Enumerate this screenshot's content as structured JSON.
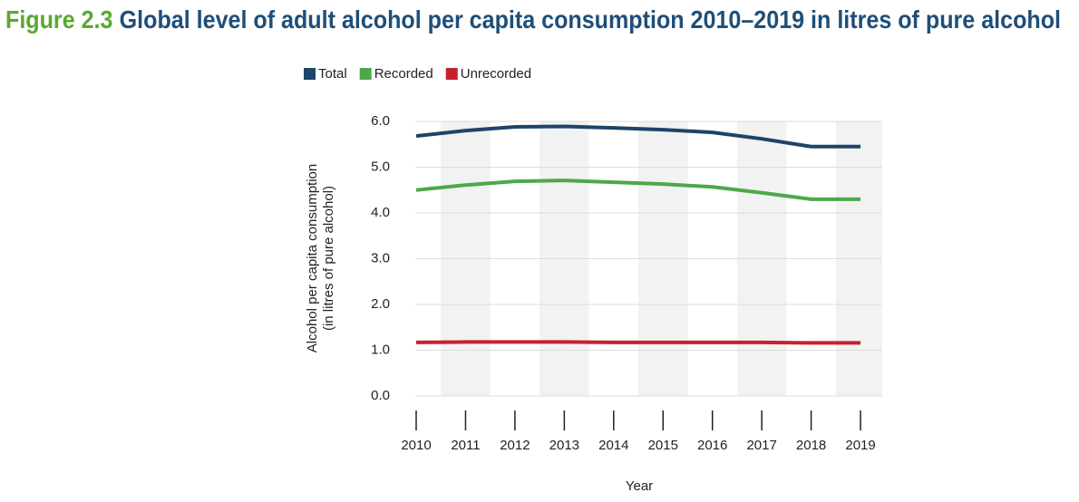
{
  "chart_data": {
    "type": "line",
    "figure_label": "Figure 2.3",
    "title": "Global level of adult alcohol per capita consumption 2010–2019 in litres of pure alcohol",
    "xlabel": "Year",
    "ylabel": [
      "Alcohol per capita consumption",
      "(in litres of pure alcohol)"
    ],
    "categories": [
      "2010",
      "2011",
      "2012",
      "2013",
      "2014",
      "2015",
      "2016",
      "2017",
      "2018",
      "2019"
    ],
    "series": [
      {
        "name": "Total",
        "color": "#1d4469",
        "values": [
          5.68,
          5.8,
          5.88,
          5.89,
          5.86,
          5.82,
          5.76,
          5.62,
          5.45,
          5.45
        ]
      },
      {
        "name": "Recorded",
        "color": "#4ea84a",
        "values": [
          4.5,
          4.61,
          4.69,
          4.71,
          4.67,
          4.63,
          4.57,
          4.44,
          4.3,
          4.3
        ]
      },
      {
        "name": "Unrecorded",
        "color": "#c8202f",
        "values": [
          1.17,
          1.18,
          1.18,
          1.18,
          1.17,
          1.17,
          1.17,
          1.17,
          1.16,
          1.16
        ]
      }
    ],
    "ylim": [
      0,
      6
    ],
    "yticks": [
      {
        "value": 0,
        "label": "0.0"
      },
      {
        "value": 1,
        "label": "1.0"
      },
      {
        "value": 2,
        "label": "2.0"
      },
      {
        "value": 3,
        "label": "3.0"
      },
      {
        "value": 4,
        "label": "4.0"
      },
      {
        "value": 5,
        "label": "5.0"
      },
      {
        "value": 6,
        "label": "6.0"
      }
    ],
    "grid": true,
    "legend": "top"
  }
}
